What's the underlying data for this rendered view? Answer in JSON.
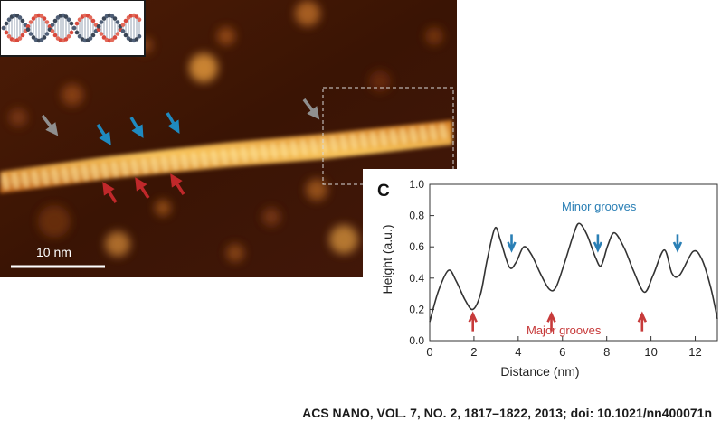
{
  "afm_image": {
    "scale_bar_label": "10 nm",
    "gray_arrows": 2,
    "blue_arrows": 3,
    "red_arrows": 3,
    "colors": {
      "background": "#3f1605",
      "strand": "#f0a540",
      "arrow_blue": "#1f8ac0",
      "arrow_red": "#c0282a",
      "arrow_gray": "#8f8f8f"
    }
  },
  "dna_model_inset": {
    "description_icon": "dna-double-helix-model"
  },
  "panel_c": {
    "panel_letter": "C",
    "annotations": {
      "minor": "Minor grooves",
      "major": "Major grooves"
    },
    "colors": {
      "minor": "#2a7fb5",
      "major": "#c73a3a",
      "line": "#333333"
    }
  },
  "chart_data": {
    "type": "line",
    "xlabel": "Distance (nm)",
    "ylabel": "Height (a.u.)",
    "xlim": [
      0,
      13
    ],
    "ylim": [
      0.0,
      1.0
    ],
    "xticks": [
      0,
      2,
      4,
      6,
      8,
      10,
      12
    ],
    "yticks": [
      0.0,
      0.2,
      0.4,
      0.6,
      0.8,
      1.0
    ],
    "grid": false,
    "series": [
      {
        "x": [
          0,
          0.4,
          0.85,
          1.2,
          1.6,
          1.95,
          2.3,
          2.6,
          2.95,
          3.2,
          3.6,
          3.9,
          4.25,
          4.6,
          5.0,
          5.4,
          5.7,
          6.1,
          6.5,
          6.75,
          7.1,
          7.5,
          7.75,
          8.05,
          8.35,
          8.8,
          9.2,
          9.7,
          10.1,
          10.6,
          10.95,
          11.3,
          11.9,
          12.3,
          12.7,
          13.0
        ],
        "y": [
          0.12,
          0.32,
          0.45,
          0.38,
          0.26,
          0.2,
          0.3,
          0.52,
          0.72,
          0.64,
          0.47,
          0.5,
          0.6,
          0.55,
          0.43,
          0.33,
          0.34,
          0.5,
          0.68,
          0.75,
          0.68,
          0.53,
          0.48,
          0.61,
          0.69,
          0.59,
          0.45,
          0.31,
          0.42,
          0.58,
          0.43,
          0.42,
          0.57,
          0.52,
          0.34,
          0.14
        ]
      }
    ],
    "minor_groove_x": [
      3.7,
      7.6,
      11.2
    ],
    "major_groove_x": [
      1.95,
      5.5,
      9.6
    ]
  },
  "citation": "ACS NANO, VOL. 7, NO. 2, 1817–1822, 2013; doi: 10.1021/nn400071n"
}
